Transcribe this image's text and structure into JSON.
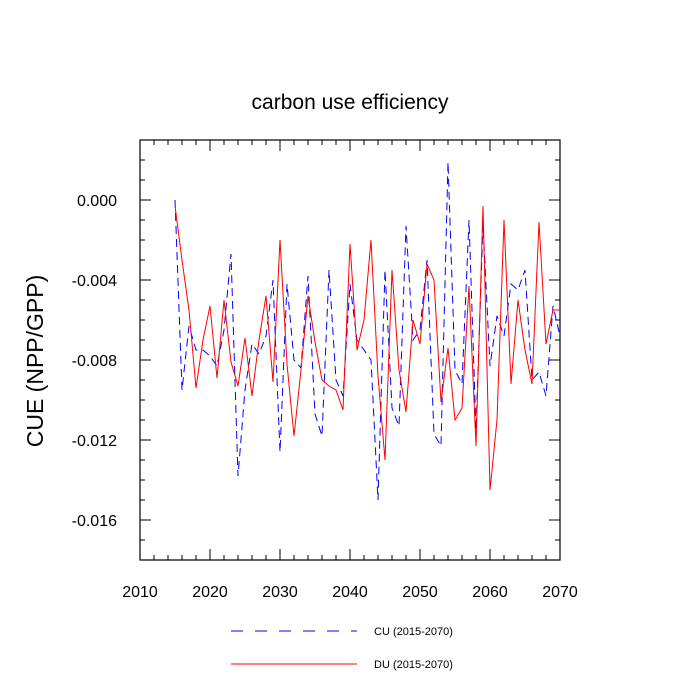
{
  "chart_data": {
    "type": "line",
    "title": "carbon use efficiency",
    "xlabel": "",
    "ylabel": "CUE  (NPP/GPP)",
    "xlim": [
      2010,
      2070
    ],
    "ylim": [
      -0.018,
      0.003
    ],
    "x_ticks": [
      2010,
      2020,
      2030,
      2040,
      2050,
      2060,
      2070
    ],
    "x_tick_labels": [
      "2010",
      "2020",
      "2030",
      "2040",
      "2050",
      "2060",
      "2070"
    ],
    "y_ticks": [
      0.0,
      -0.004,
      -0.008,
      -0.012,
      -0.016
    ],
    "y_tick_labels": [
      "0.000",
      "-0.004",
      "-0.008",
      "-0.012",
      "-0.016"
    ],
    "x": [
      2015,
      2016,
      2017,
      2018,
      2019,
      2020,
      2021,
      2022,
      2023,
      2024,
      2025,
      2026,
      2027,
      2028,
      2029,
      2030,
      2031,
      2032,
      2033,
      2034,
      2035,
      2036,
      2037,
      2038,
      2039,
      2040,
      2041,
      2042,
      2043,
      2044,
      2045,
      2046,
      2047,
      2048,
      2049,
      2050,
      2051,
      2052,
      2053,
      2054,
      2055,
      2056,
      2057,
      2058,
      2059,
      2060,
      2061,
      2062,
      2063,
      2064,
      2065,
      2066,
      2067,
      2068,
      2069,
      2070
    ],
    "series": [
      {
        "name": "CU (2015-2070)",
        "color": "#0000ff",
        "style": "dashed",
        "values": [
          0.0,
          -0.0095,
          -0.0063,
          -0.0075,
          -0.0075,
          -0.0078,
          -0.0083,
          -0.0065,
          -0.0027,
          -0.0138,
          -0.0095,
          -0.0072,
          -0.0077,
          -0.0068,
          -0.004,
          -0.0126,
          -0.0042,
          -0.008,
          -0.0084,
          -0.0038,
          -0.0107,
          -0.0118,
          -0.0035,
          -0.009,
          -0.0098,
          -0.0042,
          -0.007,
          -0.0075,
          -0.008,
          -0.015,
          -0.0035,
          -0.0104,
          -0.0113,
          -0.0013,
          -0.007,
          -0.0065,
          -0.003,
          -0.0117,
          -0.0123,
          0.0019,
          -0.0085,
          -0.0092,
          -0.001,
          -0.0115,
          -0.0012,
          -0.0083,
          -0.0058,
          -0.0068,
          -0.0042,
          -0.0045,
          -0.0035,
          -0.009,
          -0.0086,
          -0.0098,
          -0.0053,
          -0.0068
        ]
      },
      {
        "name": "DU (2015-2070)",
        "color": "#ff0000",
        "style": "solid",
        "values": [
          -0.0003,
          -0.003,
          -0.0055,
          -0.0094,
          -0.007,
          -0.0053,
          -0.0089,
          -0.005,
          -0.0081,
          -0.0093,
          -0.0069,
          -0.0098,
          -0.007,
          -0.0048,
          -0.0091,
          -0.002,
          -0.0082,
          -0.0118,
          -0.0085,
          -0.0048,
          -0.0071,
          -0.009,
          -0.0093,
          -0.0095,
          -0.0105,
          -0.0022,
          -0.0075,
          -0.006,
          -0.002,
          -0.0088,
          -0.013,
          -0.0035,
          -0.0085,
          -0.0106,
          -0.006,
          -0.0072,
          -0.0032,
          -0.004,
          -0.0101,
          -0.0074,
          -0.011,
          -0.0104,
          -0.0043,
          -0.0123,
          -0.0003,
          -0.0145,
          -0.011,
          -0.001,
          -0.0092,
          -0.005,
          -0.0075,
          -0.0092,
          -0.0011,
          -0.0072,
          -0.0055,
          -0.0055
        ]
      }
    ],
    "legend": [
      {
        "label": "CU (2015-2070)"
      },
      {
        "label": "DU (2015-2070)"
      }
    ],
    "legend_position": "bottom"
  }
}
